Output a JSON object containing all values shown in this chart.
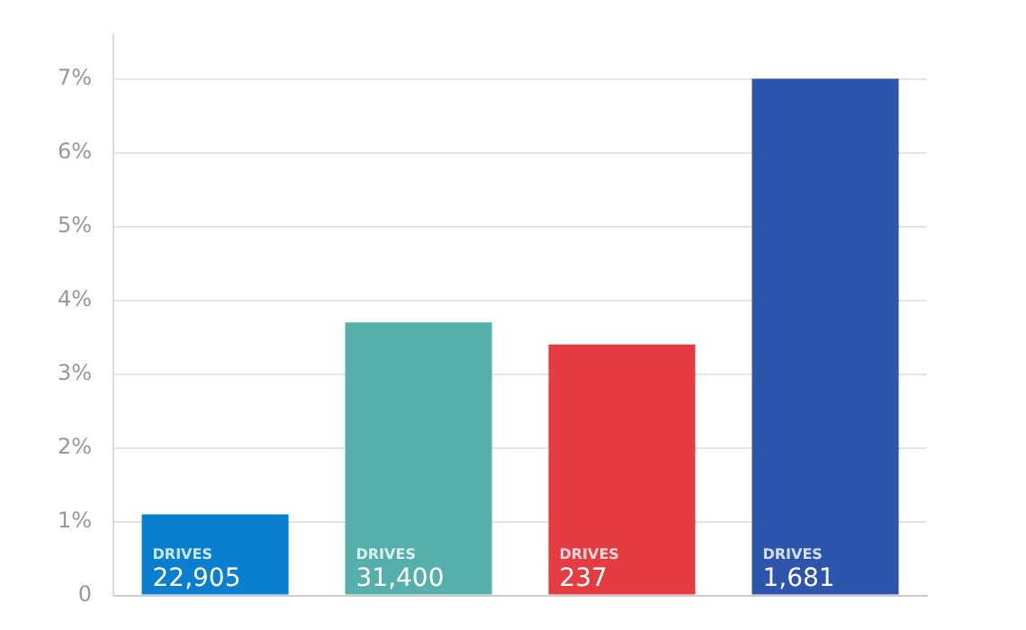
{
  "chart_data": {
    "type": "bar",
    "categories": [
      null,
      null,
      null,
      null
    ],
    "values": [
      1.1,
      3.7,
      3.4,
      7.0
    ],
    "colors": [
      "#0a7fcf",
      "#55afaa",
      "#e53c41",
      "#2d55ab"
    ],
    "ylim": [
      0,
      7.6
    ],
    "yticks": [
      {
        "value": 0,
        "label": "0"
      },
      {
        "value": 1,
        "label": "1%"
      },
      {
        "value": 2,
        "label": "2%"
      },
      {
        "value": 3,
        "label": "3%"
      },
      {
        "value": 4,
        "label": "4%"
      },
      {
        "value": 5,
        "label": "5%"
      },
      {
        "value": 6,
        "label": "6%"
      },
      {
        "value": 7,
        "label": "7%"
      }
    ],
    "grid": "y",
    "annotations": [
      "DRIVES\n22,905",
      "DRIVES\n31,400",
      "DRIVES\n237",
      "DRIVES\n1,681"
    ]
  }
}
